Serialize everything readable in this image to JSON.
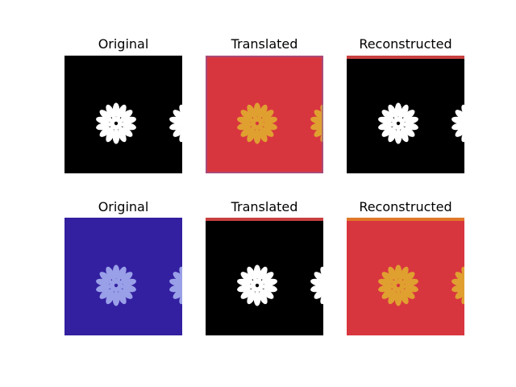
{
  "panels": [
    {
      "title": "Original",
      "background": "#000000",
      "flower": "#ffffff",
      "edge": "none"
    },
    {
      "title": "Translated",
      "background": "#d8363f",
      "flower": "#e0a030",
      "edge": "#8c5aa0"
    },
    {
      "title": "Reconstructed",
      "background": "#000000",
      "flower": "#ffffff",
      "edge": "top-red"
    },
    {
      "title": "Original",
      "background": "#3320a0",
      "flower": "#9aa0e8",
      "edge": "none"
    },
    {
      "title": "Translated",
      "background": "#000000",
      "flower": "#ffffff",
      "edge": "top-red"
    },
    {
      "title": "Reconstructed",
      "background": "#d8363f",
      "flower": "#e0a030",
      "edge": "top-orange"
    }
  ]
}
